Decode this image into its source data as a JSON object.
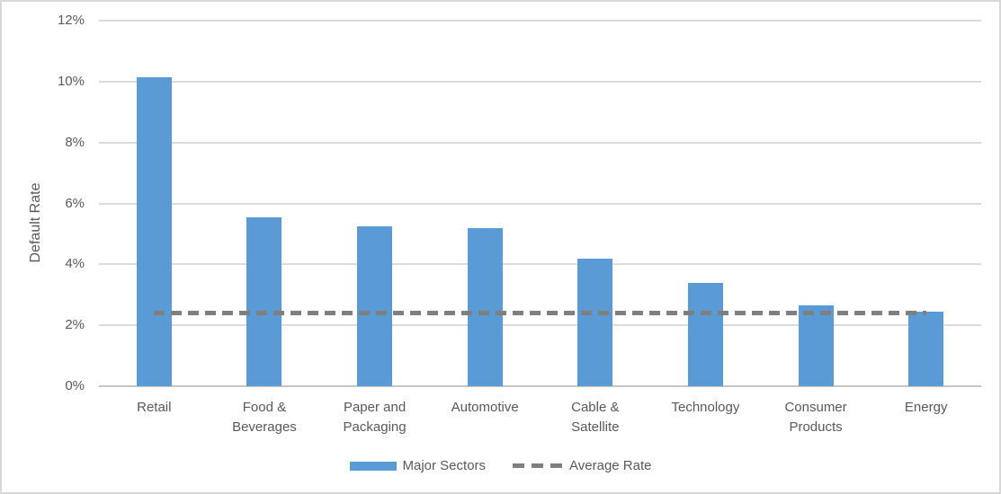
{
  "chart_data": {
    "type": "bar",
    "title": "",
    "xlabel": "",
    "ylabel": "Default Rate",
    "categories": [
      "Retail",
      "Food &\nBeverages",
      "Paper and\nPackaging",
      "Automotive",
      "Cable &\nSatellite",
      "Technology",
      "Consumer\nProducts",
      "Energy"
    ],
    "series": [
      {
        "name": "Major Sectors",
        "type": "bar",
        "color": "#5b9bd5",
        "values": [
          10.15,
          5.55,
          5.25,
          5.2,
          4.2,
          3.4,
          2.65,
          2.45
        ]
      },
      {
        "name": "Average Rate",
        "type": "dashed-line",
        "color": "#7f7f7f",
        "value": 2.4
      }
    ],
    "ylim": [
      0,
      12
    ],
    "ytick_step": 2,
    "yticks": [
      "0%",
      "2%",
      "4%",
      "6%",
      "8%",
      "10%",
      "12%"
    ],
    "grid": true,
    "legend_position": "bottom",
    "colors": {
      "gridline": "#dbdbdb",
      "axis_line": "#c6c6c6",
      "text": "#595959",
      "background": "#ffffff",
      "border": "#d8d8d8"
    }
  }
}
